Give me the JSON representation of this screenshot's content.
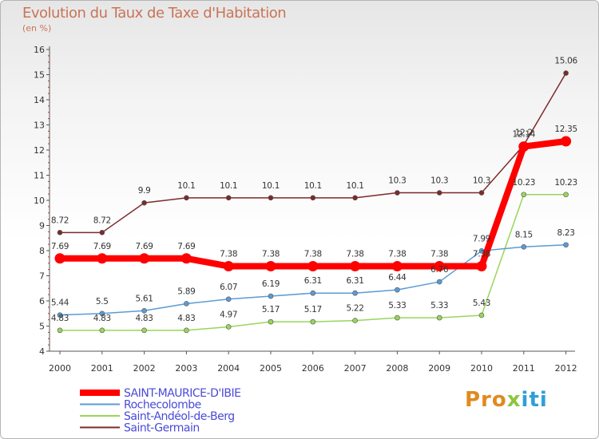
{
  "title": "Evolution du Taux de Taxe d'Habitation",
  "unit_label": "(en %)",
  "logo": {
    "part1": "Pro",
    "part2": "x",
    "part3": "iti"
  },
  "chart_data": {
    "type": "line",
    "title": "Evolution du Taux de Taxe d'Habitation",
    "ylabel": "(en %)",
    "x": [
      "2000",
      "2001",
      "2002",
      "2003",
      "2004",
      "2005",
      "2006",
      "2007",
      "2008",
      "2009",
      "2010",
      "2011",
      "2012"
    ],
    "ylim": [
      4,
      16
    ],
    "yticks": [
      "4",
      "5",
      "6",
      "7",
      "8",
      "9",
      "10",
      "11",
      "12",
      "13",
      "14",
      "15",
      "16"
    ],
    "grid": false,
    "legend_position": "bottom-left",
    "series": [
      {
        "name": "SAINT-MAURICE-D'IBIE",
        "color": "#ff0000",
        "values": [
          7.69,
          7.69,
          7.69,
          7.69,
          7.38,
          7.38,
          7.38,
          7.38,
          7.38,
          7.38,
          7.38,
          12.14,
          12.35
        ],
        "labels": [
          "7.69",
          "7.69",
          "7.69",
          "7.69",
          "7.38",
          "7.38",
          "7.38",
          "7.38",
          "7.38",
          "7.38",
          "7.38",
          "12.14",
          "12.35"
        ]
      },
      {
        "name": "Rochecolombe",
        "color": "#5b9bd5",
        "values": [
          5.44,
          5.5,
          5.61,
          5.89,
          6.07,
          6.19,
          6.31,
          6.31,
          6.44,
          6.76,
          7.99,
          8.15,
          8.23
        ],
        "labels": [
          "5.44",
          "5.5",
          "5.61",
          "5.89",
          "6.07",
          "6.19",
          "6.31",
          "6.31",
          "6.44",
          "6.76",
          "7.99",
          "8.15",
          "8.23"
        ]
      },
      {
        "name": "Saint-Andéol-de-Berg",
        "color": "#9ad55a",
        "values": [
          4.83,
          4.83,
          4.83,
          4.83,
          4.97,
          5.17,
          5.17,
          5.22,
          5.33,
          5.33,
          5.43,
          10.23,
          10.23
        ],
        "labels": [
          "4.83",
          "4.83",
          "4.83",
          "4.83",
          "4.97",
          "5.17",
          "5.17",
          "5.22",
          "5.33",
          "5.33",
          "5.43",
          "10.23",
          "10.23"
        ]
      },
      {
        "name": "Saint-Germain",
        "color": "#7d2a2a",
        "values": [
          8.72,
          8.72,
          9.9,
          10.1,
          10.1,
          10.1,
          10.1,
          10.1,
          10.3,
          10.3,
          10.3,
          12.2,
          15.06
        ],
        "labels": [
          "8.72",
          "8.72",
          "9.9",
          "10.1",
          "10.1",
          "10.1",
          "10.1",
          "10.1",
          "10.3",
          "10.3",
          "10.3",
          "12.2",
          "15.06"
        ]
      }
    ]
  }
}
